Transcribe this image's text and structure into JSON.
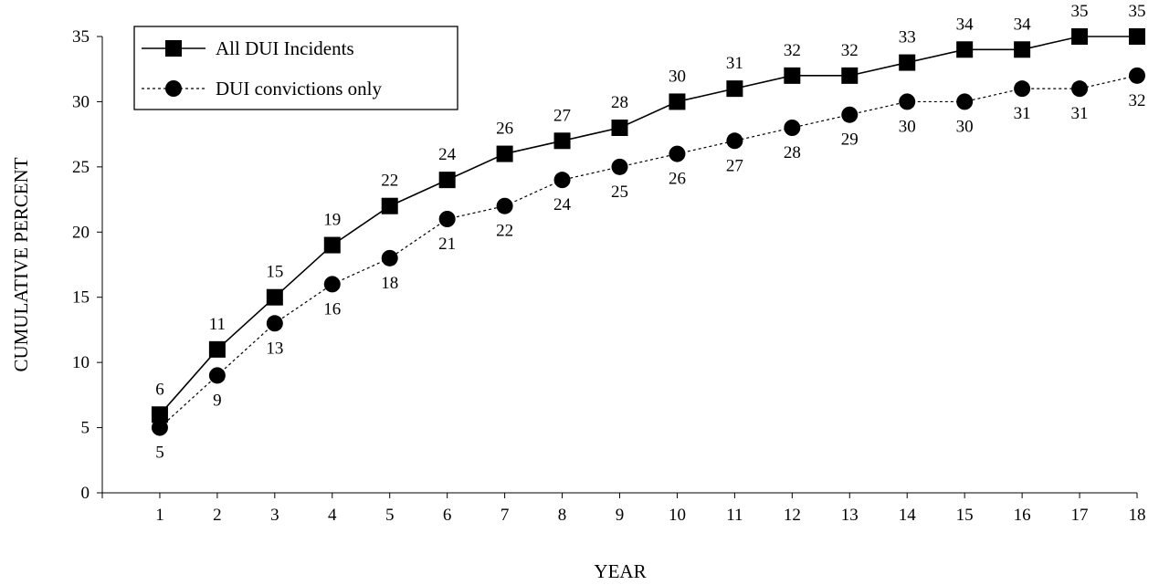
{
  "chart_data": {
    "type": "line",
    "title": "",
    "xlabel": "YEAR",
    "ylabel": "CUMULATIVE PERCENT",
    "x": [
      1,
      2,
      3,
      4,
      5,
      6,
      7,
      8,
      9,
      10,
      11,
      12,
      13,
      14,
      15,
      16,
      17,
      18
    ],
    "xlim": [
      0,
      18
    ],
    "ylim": [
      0,
      35
    ],
    "yticks": [
      0,
      5,
      10,
      15,
      20,
      25,
      30,
      35
    ],
    "grid": false,
    "legend_position": "top-left",
    "series": [
      {
        "name": "All DUI Incidents",
        "marker": "square",
        "line_style": "solid",
        "color": "#000000",
        "label_position": "above",
        "values": [
          6,
          11,
          15,
          19,
          22,
          24,
          26,
          27,
          28,
          30,
          31,
          32,
          32,
          33,
          34,
          34,
          35,
          35
        ]
      },
      {
        "name": "DUI convictions only",
        "marker": "circle",
        "line_style": "dotted",
        "color": "#000000",
        "label_position": "below",
        "values": [
          5,
          9,
          13,
          16,
          18,
          21,
          22,
          24,
          25,
          26,
          27,
          28,
          29,
          30,
          30,
          31,
          31,
          32
        ]
      }
    ]
  }
}
